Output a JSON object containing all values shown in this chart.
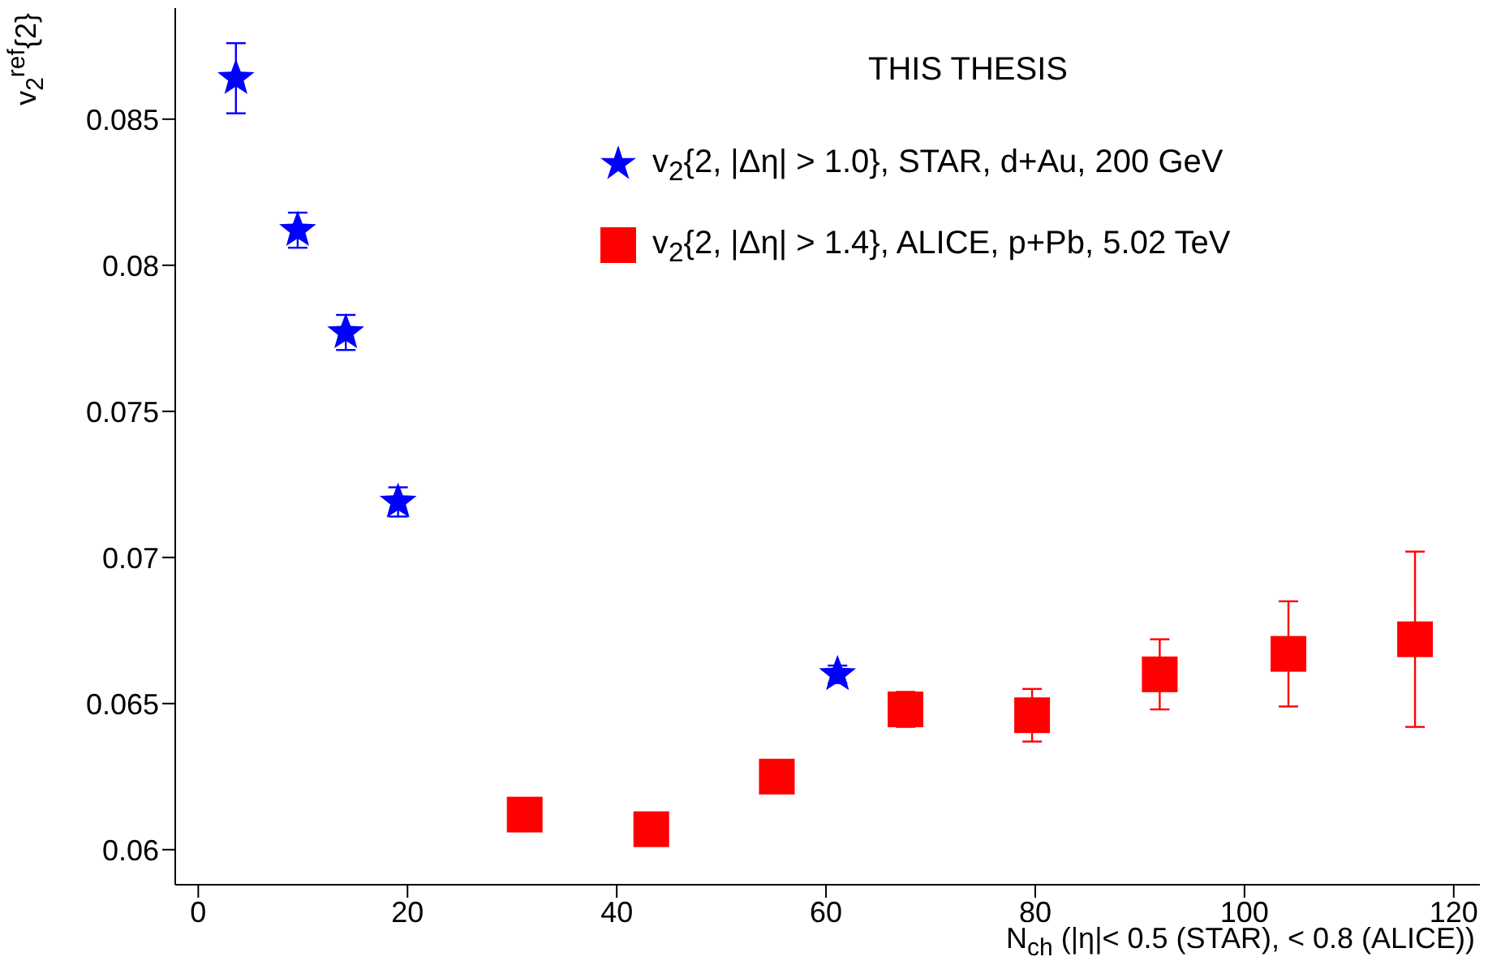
{
  "chart_data": {
    "type": "scatter",
    "xlabel": "N$_{ch}$ (|η|< 0.5 (STAR), < 0.8 (ALICE))",
    "ylabel": "v$_{2}$$^{ref}${2}",
    "annotations": [
      "THIS THESIS"
    ],
    "xlim": [
      -2.2,
      122.5
    ],
    "xticks": [
      0,
      20,
      40,
      60,
      80,
      100,
      120
    ],
    "ylim": [
      0.0588,
      0.0888
    ],
    "yticks": [
      0.06,
      0.065,
      0.07,
      0.075,
      0.08,
      0.085
    ],
    "grid": false,
    "legend": "top right",
    "series": [
      {
        "name": "v$_{2}${2, |Δη| > 1.0}, STAR, d+Au, 200 GeV",
        "color": "#0000ff",
        "marker": "star",
        "x": [
          3.6,
          9.5,
          14.1,
          19.1,
          61.1
        ],
        "values": [
          0.0864,
          0.0812,
          0.0777,
          0.0719,
          0.066
        ],
        "errors": [
          0.0012,
          0.0006,
          0.0006,
          0.0005,
          0.0003
        ]
      },
      {
        "name": "v$_{2}${2, |Δη| > 1.4}, ALICE, p+Pb, 5.02 TeV",
        "color": "#ff0000",
        "marker": "square",
        "x": [
          31.2,
          43.3,
          55.3,
          67.6,
          79.7,
          91.9,
          104.2,
          116.3
        ],
        "values": [
          0.0612,
          0.0607,
          0.0625,
          0.0648,
          0.0646,
          0.066,
          0.0667,
          0.0672
        ],
        "errors": [
          null,
          null,
          null,
          0.0006,
          0.0009,
          0.0012,
          0.0018,
          0.003
        ]
      }
    ]
  }
}
